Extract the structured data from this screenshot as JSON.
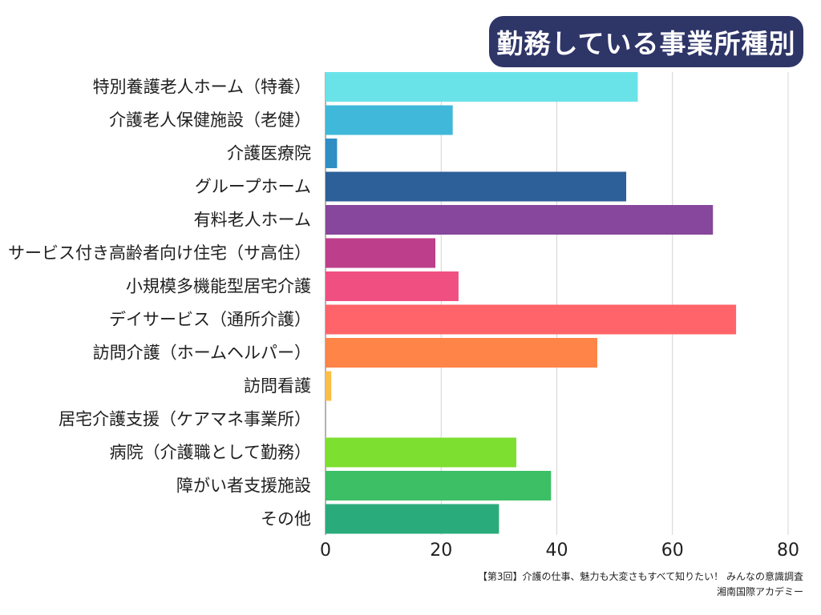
{
  "chart_data": {
    "type": "bar",
    "orientation": "horizontal",
    "title": "勤務している事業所種別",
    "categories": [
      "特別養護老人ホーム（特養）",
      "介護老人保健施設（老健）",
      "介護医療院",
      "グループホーム",
      "有料老人ホーム",
      "サービス付き高齢者向け住宅（サ高住）",
      "小規模多機能型居宅介護",
      "デイサービス（通所介護）",
      "訪問介護（ホームヘルパー）",
      "訪問看護",
      "居宅介護支援（ケアマネ事業所）",
      "病院（介護職として勤務）",
      "障がい者支援施設",
      "その他"
    ],
    "values": [
      54,
      22,
      2,
      52,
      67,
      19,
      23,
      71,
      47,
      1,
      0,
      33,
      39,
      30
    ],
    "colors": [
      "#6ae3e8",
      "#40b8d9",
      "#2f8ec4",
      "#2d5f98",
      "#87479c",
      "#bd3e8a",
      "#ef4f81",
      "#fe6469",
      "#fe8447",
      "#fcbe47",
      "#f0d84a",
      "#7ddf2f",
      "#3cbf65",
      "#2aab7b"
    ],
    "xlim": [
      0,
      80
    ],
    "xticks": [
      "0",
      "20",
      "40",
      "60",
      "80"
    ],
    "grid": true,
    "xlabel": "",
    "ylabel": ""
  },
  "source": {
    "line1": "【第3回】介護の仕事、魅力も大変さもすべて知りたい！ みんなの意識調査",
    "line2": "湘南国際アカデミー"
  }
}
